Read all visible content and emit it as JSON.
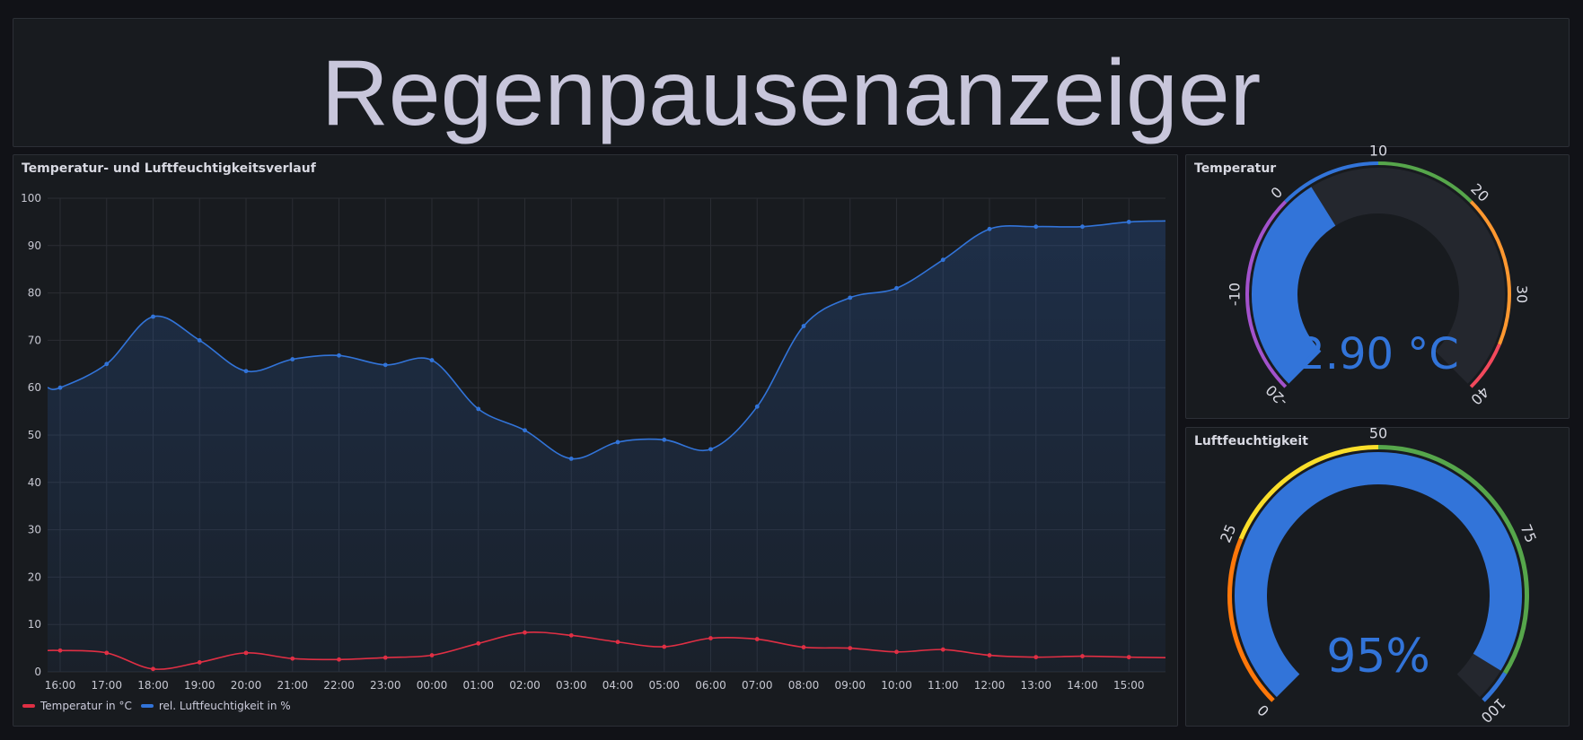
{
  "header": {
    "title": "Regenpausenanzeiger"
  },
  "chart_panel": {
    "title": "Temperatur- und Luftfeuchtigkeitsverlauf"
  },
  "chart_data": {
    "type": "line",
    "x": [
      "16:00",
      "17:00",
      "18:00",
      "19:00",
      "20:00",
      "21:00",
      "22:00",
      "23:00",
      "00:00",
      "01:00",
      "02:00",
      "03:00",
      "04:00",
      "05:00",
      "06:00",
      "07:00",
      "08:00",
      "09:00",
      "10:00",
      "11:00",
      "12:00",
      "13:00",
      "14:00",
      "15:00"
    ],
    "ylim": [
      0,
      100
    ],
    "yticks": [
      0,
      10,
      20,
      30,
      40,
      50,
      60,
      70,
      80,
      90,
      100
    ],
    "grid": true,
    "legend_position": "bottom-left",
    "series": [
      {
        "name": "Temperatur in °C",
        "color": "#e02f44",
        "values": [
          4.5,
          4,
          0.6,
          2,
          4,
          2.8,
          2.6,
          3,
          3.5,
          6,
          8.3,
          7.7,
          6.3,
          5.3,
          7.1,
          6.9,
          5.2,
          5,
          4.2,
          4.7,
          3.5,
          3.1,
          3.3,
          3.1
        ],
        "last": 3.0
      },
      {
        "name": "rel. Luftfeuchtigkeit in %",
        "color": "#3274d9",
        "values": [
          60,
          65,
          75,
          70,
          63.5,
          66,
          66.8,
          64.8,
          65.8,
          55.5,
          51,
          45,
          48.5,
          49,
          47,
          56,
          73,
          79,
          81,
          87,
          93.5,
          94,
          94,
          95
        ],
        "last": 95.2
      }
    ]
  },
  "temp_gauge": {
    "title": "Temperatur",
    "value": 2.9,
    "value_text": "2.90 °C",
    "min": -20,
    "max": 40,
    "tick_labels": [
      "-20",
      "-10",
      "0",
      "10",
      "20",
      "30",
      "40"
    ],
    "thresholds": [
      {
        "from": -20,
        "to": 0,
        "color": "#a352cc"
      },
      {
        "from": 0,
        "to": 10,
        "color": "#3274d9"
      },
      {
        "from": 10,
        "to": 20,
        "color": "#56a64b"
      },
      {
        "from": 20,
        "to": 35,
        "color": "#ff9830"
      },
      {
        "from": 35,
        "to": 40,
        "color": "#f2495c"
      }
    ],
    "fill_color": "#3274d9"
  },
  "hum_gauge": {
    "title": "Luftfeuchtigkeit",
    "value": 95,
    "value_text": "95%",
    "min": 0,
    "max": 100,
    "tick_labels": [
      "0",
      "25",
      "50",
      "75",
      "100"
    ],
    "thresholds": [
      {
        "from": 0,
        "to": 25,
        "color": "#ff780a"
      },
      {
        "from": 25,
        "to": 50,
        "color": "#fade2a"
      },
      {
        "from": 50,
        "to": 95,
        "color": "#56a64b"
      },
      {
        "from": 95,
        "to": 100,
        "color": "#3274d9"
      }
    ],
    "fill_color": "#3274d9"
  }
}
